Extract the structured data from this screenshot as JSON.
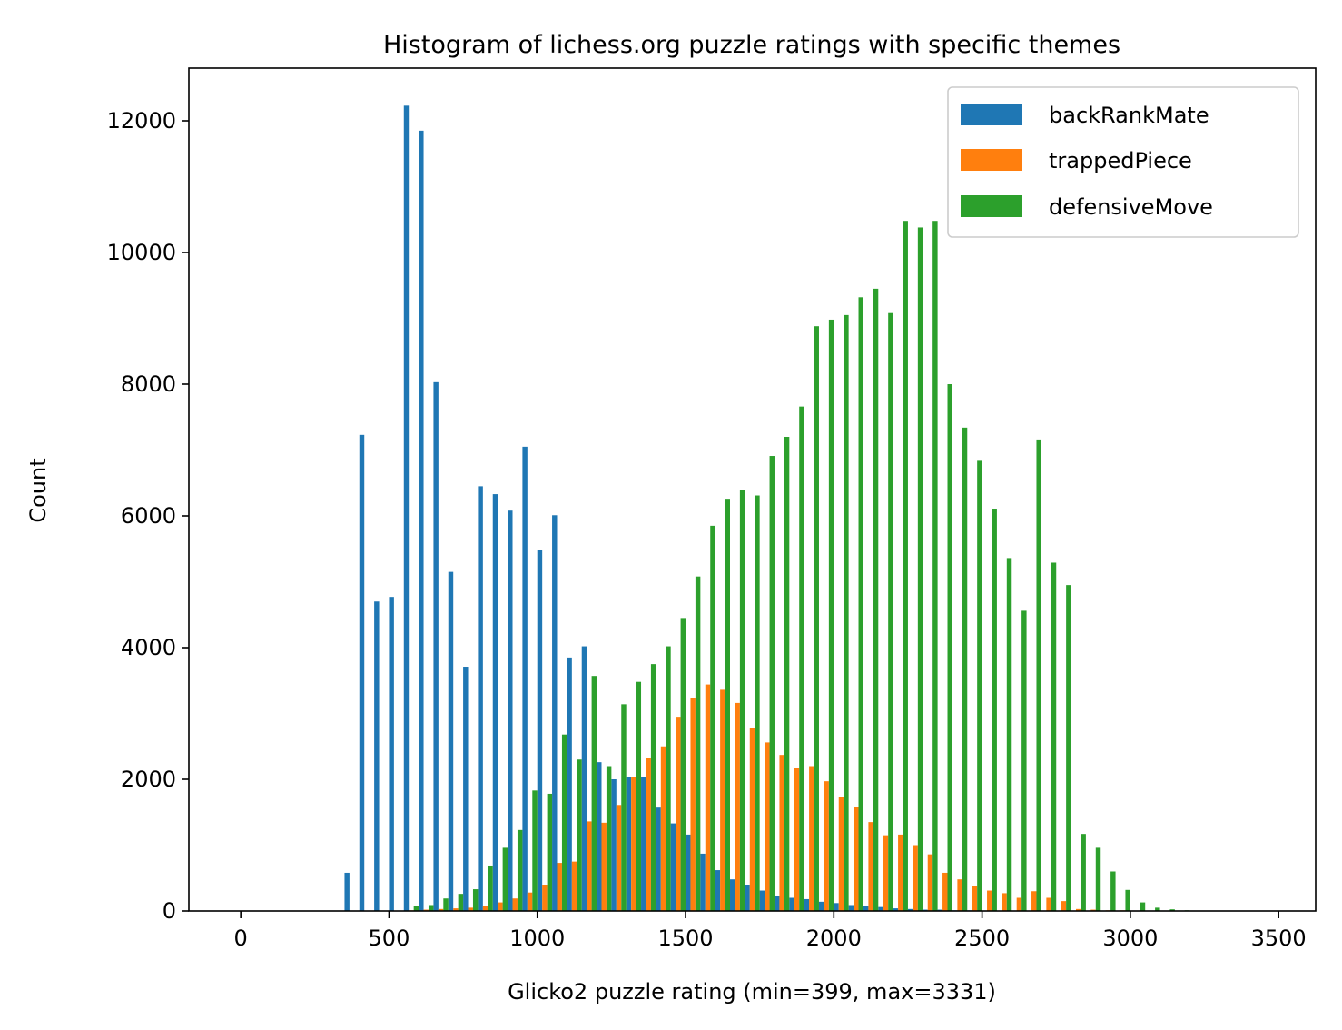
{
  "chart_data": {
    "type": "bar",
    "title": "Histogram of lichess.org puzzle ratings with specific themes",
    "xlabel": "Glicko2 puzzle rating (min=399, max=3331)",
    "ylabel": "Count",
    "xlim": [
      -175,
      3625
    ],
    "ylim": [
      0,
      12800
    ],
    "xticks": [
      0,
      500,
      1000,
      1500,
      2000,
      2500,
      3000,
      3500
    ],
    "yticks": [
      0,
      2000,
      4000,
      6000,
      8000,
      10000,
      12000
    ],
    "legend_position": "top-right",
    "bins": {
      "start": 350,
      "width": 50,
      "count": 60
    },
    "series": [
      {
        "name": "backRankMate",
        "color": "#1f77b4",
        "values": [
          580,
          7230,
          4700,
          4770,
          12230,
          11850,
          8030,
          5150,
          3710,
          6450,
          6330,
          6080,
          7050,
          5480,
          6010,
          3850,
          4020,
          2260,
          2000,
          2030,
          2040,
          1570,
          1330,
          1160,
          870,
          620,
          480,
          400,
          310,
          230,
          200,
          180,
          140,
          120,
          90,
          70,
          60,
          40,
          30,
          20,
          20,
          10,
          10,
          5,
          5,
          5,
          0,
          0,
          0,
          0,
          0,
          0,
          0,
          0,
          0,
          0,
          0,
          0,
          0,
          0
        ]
      },
      {
        "name": "trappedPiece",
        "color": "#ff7f0e",
        "values": [
          0,
          0,
          0,
          0,
          10,
          20,
          30,
          40,
          50,
          70,
          130,
          190,
          280,
          400,
          730,
          750,
          1360,
          1340,
          1610,
          2040,
          2330,
          2500,
          2950,
          3230,
          3440,
          3360,
          3160,
          2780,
          2560,
          2370,
          2170,
          2200,
          1970,
          1730,
          1580,
          1350,
          1150,
          1160,
          1000,
          860,
          580,
          480,
          380,
          310,
          270,
          200,
          300,
          200,
          150,
          30,
          20,
          10,
          10,
          5,
          5,
          0,
          0,
          0,
          0,
          0
        ]
      },
      {
        "name": "defensiveMove",
        "color": "#2ca02c",
        "values": [
          0,
          0,
          0,
          0,
          80,
          90,
          190,
          260,
          330,
          690,
          960,
          1230,
          1830,
          1780,
          2680,
          2300,
          3570,
          2200,
          3140,
          3480,
          3750,
          4020,
          4450,
          5080,
          5850,
          6260,
          6390,
          6310,
          6910,
          7200,
          7660,
          8880,
          8980,
          9050,
          9320,
          9450,
          9080,
          10480,
          10380,
          10480,
          8000,
          7340,
          6850,
          6110,
          5360,
          4560,
          7160,
          5290,
          4950,
          1170,
          960,
          600,
          320,
          130,
          50,
          25,
          10,
          5,
          0,
          0
        ]
      }
    ]
  }
}
